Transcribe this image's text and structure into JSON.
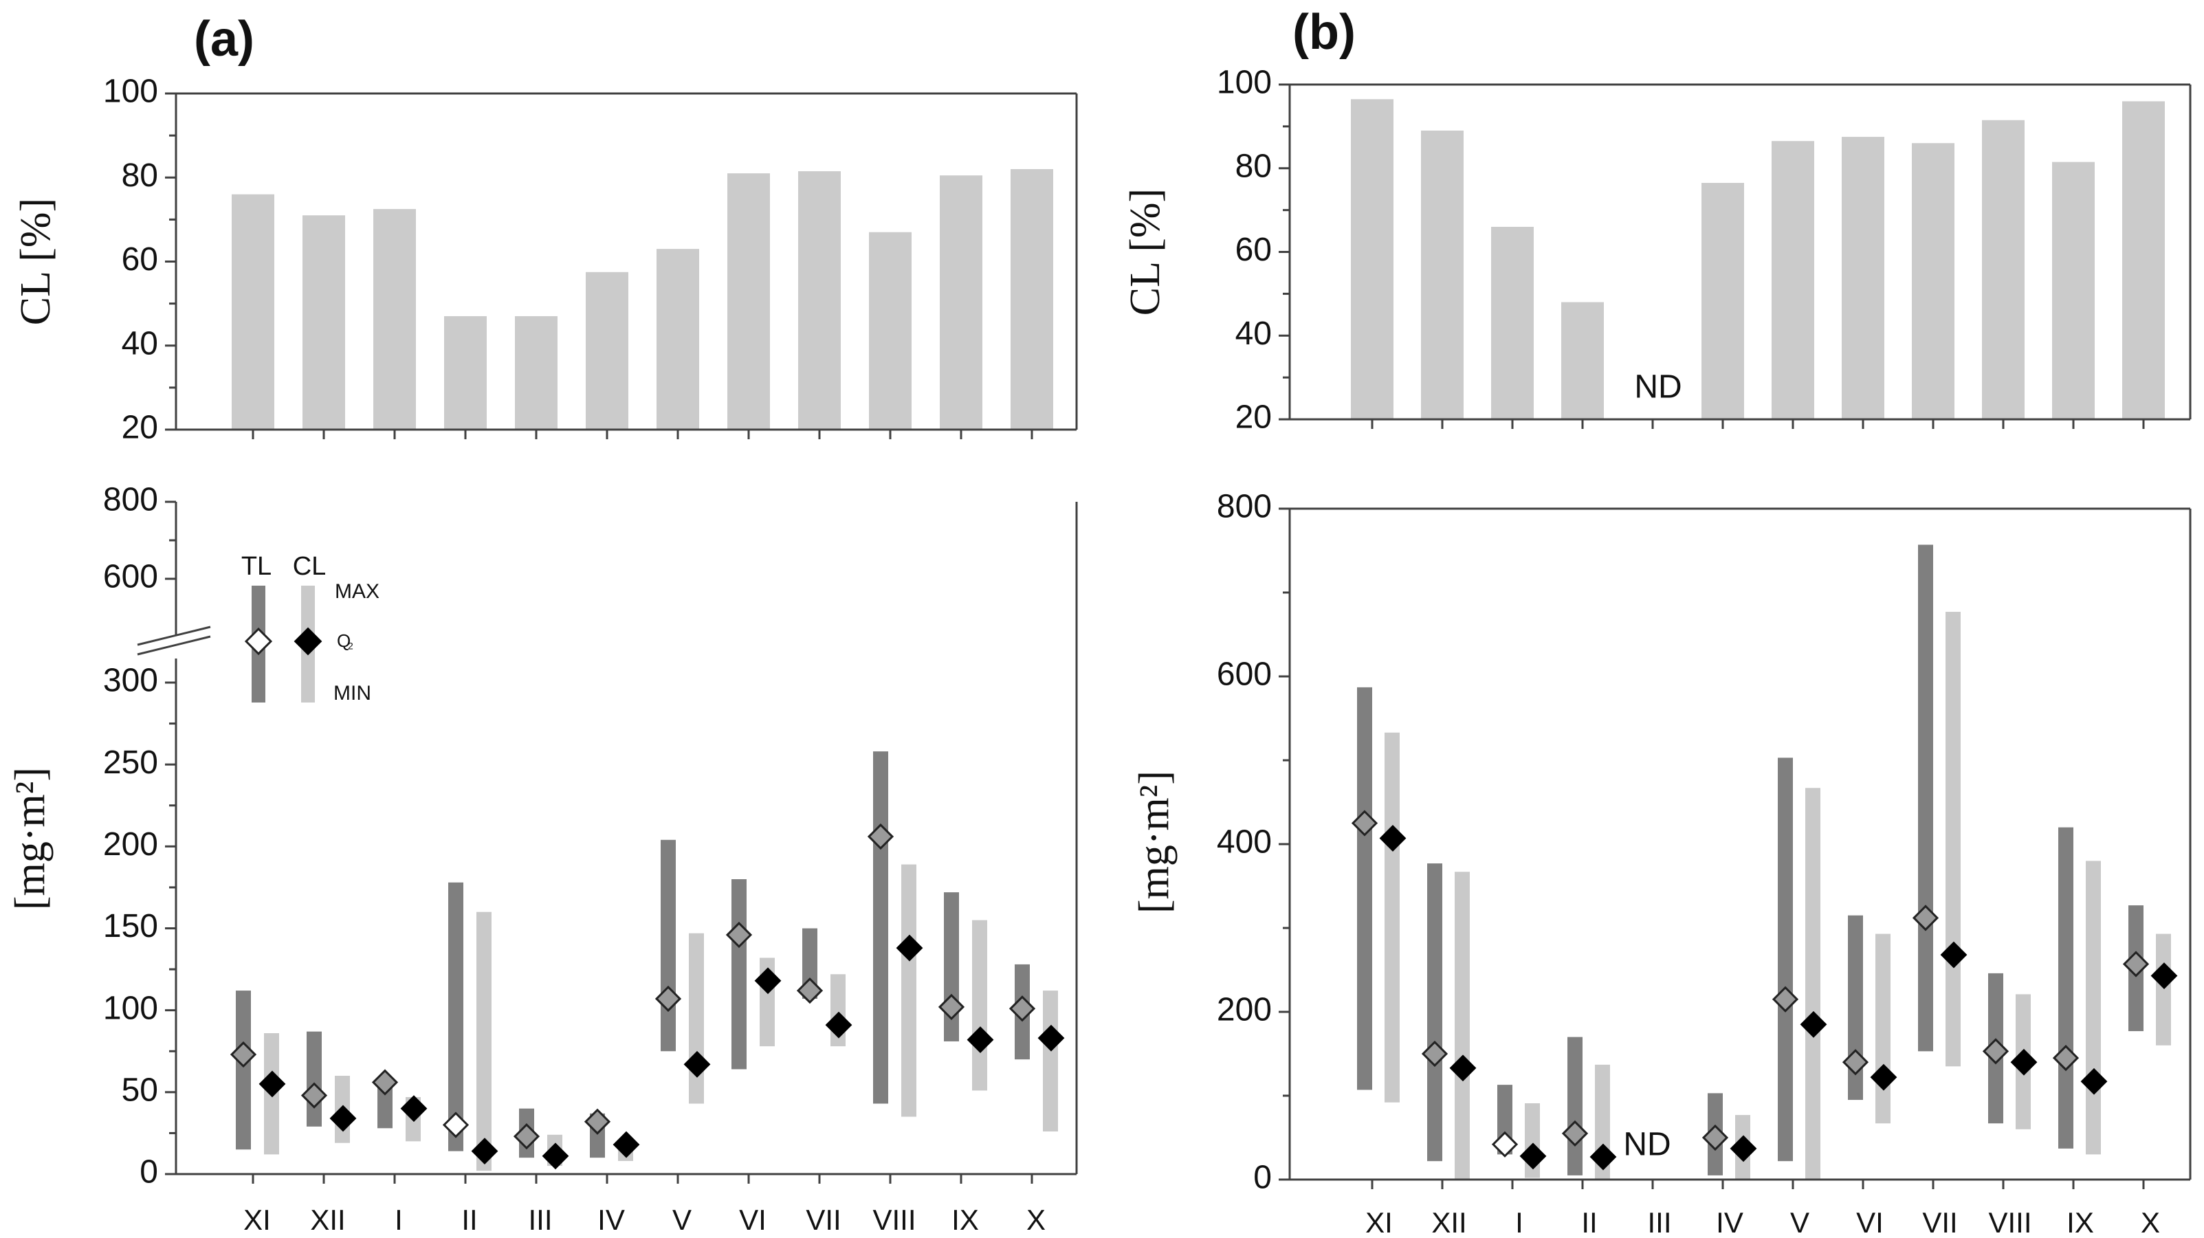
{
  "colors": {
    "tl_range": "#7f7f7f",
    "cl_range": "#c9c9c9",
    "cl_bar": "#cbcbcb",
    "axis": "#404040",
    "marker_black": "#000000",
    "marker_gray": "#9a9a9a",
    "marker_white": "#ffffff"
  },
  "chart_data": [
    {
      "panel": "(a)",
      "type": "bar",
      "title": "(a)",
      "ylabel": "CL  [%]",
      "ylim": [
        20,
        100
      ],
      "yticks": [
        20,
        40,
        60,
        80,
        100
      ],
      "categories": [
        "XI",
        "XII",
        "I",
        "II",
        "III",
        "IV",
        "V",
        "VI",
        "VII",
        "VIII",
        "IX",
        "X"
      ],
      "values": [
        76,
        71,
        72.5,
        47,
        47,
        57.5,
        63,
        81,
        81.5,
        67,
        80.5,
        82
      ]
    },
    {
      "panel": "(a)",
      "type": "range",
      "ylabel": "[mg·m²]",
      "yticks": [
        "0",
        "50",
        "100",
        "150",
        "200",
        "250",
        "300",
        "600",
        "800"
      ],
      "axis_break": "between 300 and 600",
      "categories": [
        "XI",
        "XII",
        "I",
        "II",
        "III",
        "IV",
        "V",
        "VI",
        "VII",
        "VIII",
        "IX",
        "X"
      ],
      "tl_max": [
        112,
        87,
        58,
        178,
        40,
        37,
        204,
        180,
        150,
        258,
        172,
        128
      ],
      "tl_min": [
        15,
        29,
        28,
        14,
        10,
        10,
        75,
        64,
        107,
        43,
        81,
        70
      ],
      "tl_median": [
        73,
        48,
        56,
        30,
        23,
        32,
        107,
        146,
        112,
        206,
        102,
        101
      ],
      "cl_max": [
        86,
        60,
        47,
        160,
        24,
        20,
        147,
        132,
        122,
        189,
        155,
        112
      ],
      "cl_min": [
        12,
        19,
        20,
        2,
        5,
        8,
        43,
        78,
        78,
        35,
        51,
        26
      ],
      "cl_median": [
        55,
        34,
        40,
        14,
        11,
        18,
        67,
        118,
        91,
        138,
        82,
        83
      ],
      "tl_marker_fill": [
        "gray",
        "gray",
        "gray",
        "white",
        "gray",
        "gray",
        "gray",
        "gray",
        "gray",
        "gray",
        "gray",
        "gray"
      ],
      "legend": {
        "tl": "TL",
        "cl": "CL",
        "max": "MAX",
        "q2": "Q",
        "q2_sub": "2",
        "min": "MIN"
      }
    },
    {
      "panel": "(b)",
      "type": "bar",
      "title": "(b)",
      "ylabel": "CL  [%]",
      "ylim": [
        20,
        100
      ],
      "yticks": [
        20,
        40,
        60,
        80,
        100
      ],
      "categories": [
        "XI",
        "XII",
        "I",
        "II",
        "III",
        "IV",
        "V",
        "VI",
        "VII",
        "VIII",
        "IX",
        "X"
      ],
      "values": [
        96.5,
        89,
        66,
        48,
        null,
        76.5,
        86.5,
        87.5,
        86,
        91.5,
        81.5,
        96
      ],
      "annotation": "ND"
    },
    {
      "panel": "(b)",
      "type": "range",
      "ylabel": "[mg·m²]",
      "ylim": [
        0,
        800
      ],
      "yticks": [
        0,
        200,
        400,
        600,
        800
      ],
      "categories": [
        "XI",
        "XII",
        "I",
        "II",
        "III",
        "IV",
        "V",
        "VI",
        "VII",
        "VIII",
        "IX",
        "X"
      ],
      "tl_max": [
        587,
        377,
        113,
        170,
        null,
        103,
        503,
        315,
        757,
        246,
        420,
        327
      ],
      "tl_min": [
        107,
        22,
        30,
        5,
        null,
        5,
        22,
        95,
        153,
        67,
        37,
        177
      ],
      "tl_median": [
        425,
        150,
        42,
        55,
        null,
        50,
        215,
        140,
        312,
        153,
        145,
        257
      ],
      "cl_max": [
        533,
        367,
        91,
        137,
        null,
        77,
        467,
        293,
        677,
        221,
        380,
        293
      ],
      "cl_min": [
        92,
        0,
        2,
        0,
        null,
        0,
        0,
        67,
        135,
        60,
        30,
        160
      ],
      "cl_median": [
        407,
        133,
        28,
        27,
        null,
        37,
        185,
        122,
        268,
        140,
        117,
        243
      ],
      "tl_marker_fill": [
        "gray",
        "gray",
        "white",
        "gray",
        null,
        "gray",
        "gray",
        "gray",
        "gray",
        "gray",
        "gray",
        "gray"
      ],
      "annotation": "ND"
    }
  ]
}
